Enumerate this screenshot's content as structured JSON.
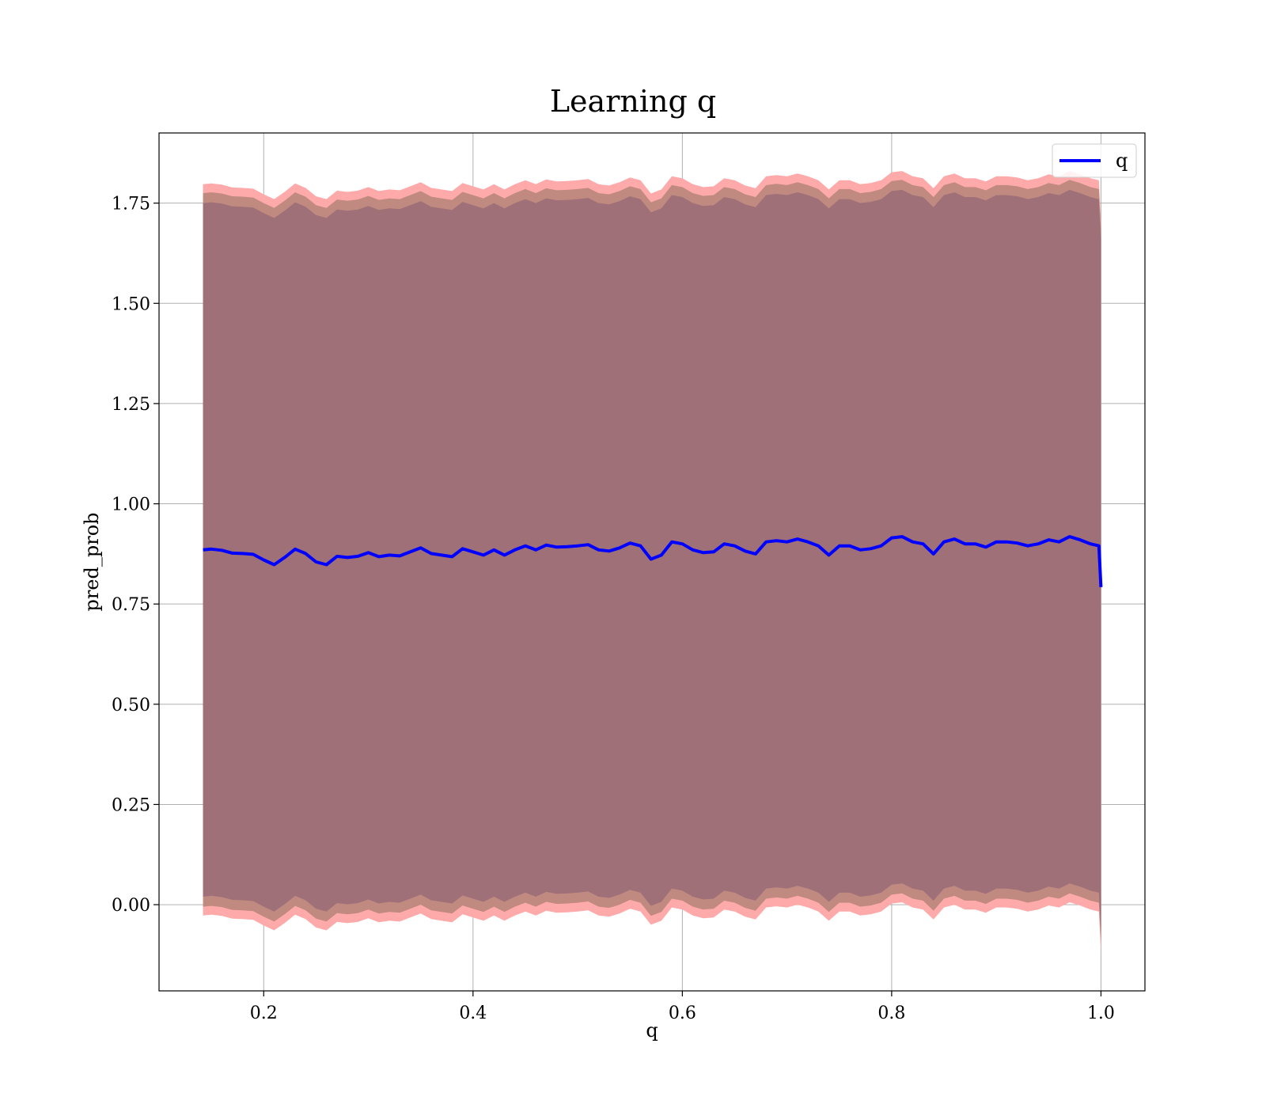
{
  "chart_data": {
    "type": "line",
    "title": "Learning q",
    "xlabel": "q",
    "ylabel": "pred_prob",
    "xlim": [
      0.1,
      1.042
    ],
    "ylim": [
      -0.215,
      1.925
    ],
    "xticks": [
      "0.2",
      "0.4",
      "0.6",
      "0.8",
      "1.0"
    ],
    "yticks": [
      "0.00",
      "0.25",
      "0.50",
      "0.75",
      "1.00",
      "1.25",
      "1.50",
      "1.75"
    ],
    "grid": true,
    "legend": {
      "position": "top-right",
      "entries": [
        "q"
      ]
    },
    "colors": {
      "line": "#0000ff",
      "inner_band": "#a07078",
      "mid_band": "#c08a80",
      "outer_band": "#ffaaaa"
    },
    "x": [
      0.142,
      0.15,
      0.16,
      0.17,
      0.18,
      0.19,
      0.2,
      0.21,
      0.22,
      0.23,
      0.24,
      0.25,
      0.26,
      0.27,
      0.28,
      0.29,
      0.3,
      0.31,
      0.32,
      0.33,
      0.34,
      0.35,
      0.36,
      0.37,
      0.38,
      0.39,
      0.4,
      0.41,
      0.42,
      0.43,
      0.44,
      0.45,
      0.46,
      0.47,
      0.48,
      0.49,
      0.5,
      0.51,
      0.52,
      0.53,
      0.54,
      0.55,
      0.56,
      0.57,
      0.58,
      0.59,
      0.6,
      0.61,
      0.62,
      0.63,
      0.64,
      0.65,
      0.66,
      0.67,
      0.68,
      0.69,
      0.7,
      0.71,
      0.72,
      0.73,
      0.74,
      0.75,
      0.76,
      0.77,
      0.78,
      0.79,
      0.8,
      0.81,
      0.82,
      0.83,
      0.84,
      0.85,
      0.86,
      0.87,
      0.88,
      0.89,
      0.9,
      0.91,
      0.92,
      0.93,
      0.94,
      0.95,
      0.96,
      0.97,
      0.98,
      0.99,
      0.998,
      1.0
    ],
    "series": [
      {
        "name": "q",
        "values": [
          0.885,
          0.887,
          0.884,
          0.877,
          0.876,
          0.874,
          0.86,
          0.848,
          0.866,
          0.887,
          0.876,
          0.855,
          0.848,
          0.869,
          0.866,
          0.869,
          0.878,
          0.868,
          0.872,
          0.87,
          0.88,
          0.89,
          0.876,
          0.872,
          0.868,
          0.888,
          0.88,
          0.872,
          0.885,
          0.872,
          0.885,
          0.895,
          0.885,
          0.897,
          0.892,
          0.893,
          0.895,
          0.898,
          0.885,
          0.882,
          0.89,
          0.902,
          0.895,
          0.862,
          0.872,
          0.905,
          0.9,
          0.885,
          0.878,
          0.88,
          0.9,
          0.895,
          0.882,
          0.875,
          0.905,
          0.908,
          0.905,
          0.912,
          0.905,
          0.895,
          0.872,
          0.895,
          0.895,
          0.885,
          0.888,
          0.895,
          0.915,
          0.918,
          0.905,
          0.9,
          0.875,
          0.905,
          0.912,
          0.9,
          0.9,
          0.892,
          0.905,
          0.905,
          0.902,
          0.895,
          0.9,
          0.91,
          0.905,
          0.918,
          0.91,
          0.9,
          0.895,
          0.792
        ]
      }
    ],
    "bands": {
      "offsets": {
        "inner": 0.865,
        "mid": 0.89,
        "outer": 0.912
      }
    }
  }
}
